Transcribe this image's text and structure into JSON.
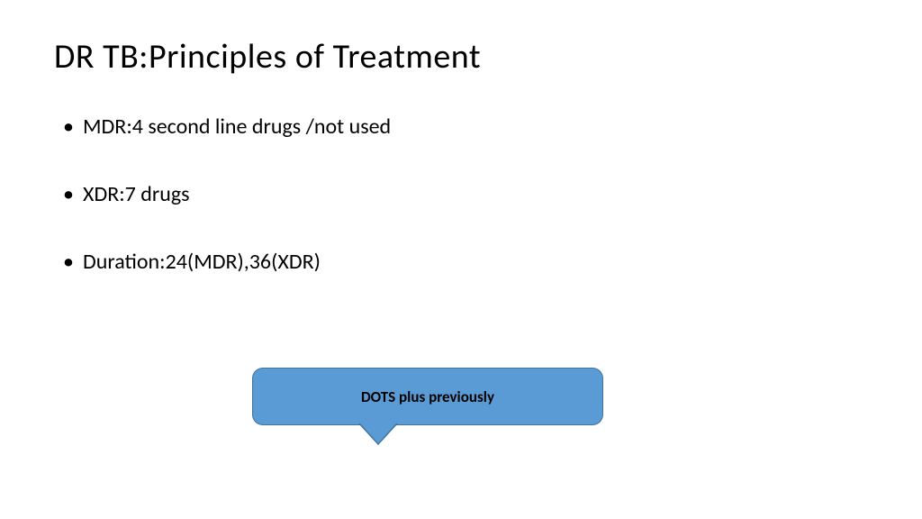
{
  "slide": {
    "title": "DR TB:Principles of Treatment",
    "bullets": [
      "MDR:4 second line drugs /not used",
      "XDR:7 drugs",
      "Duration:24(MDR),36(XDR)"
    ],
    "callout": {
      "text": "DOTS plus previously",
      "fill_color": "#5b9bd5",
      "border_color": "#41719c",
      "text_color": "#000000",
      "border_radius": 12,
      "font_weight": 700,
      "font_size": 17
    },
    "title_fontsize": 38,
    "body_fontsize": 24,
    "background_color": "#ffffff",
    "text_color": "#000000"
  }
}
